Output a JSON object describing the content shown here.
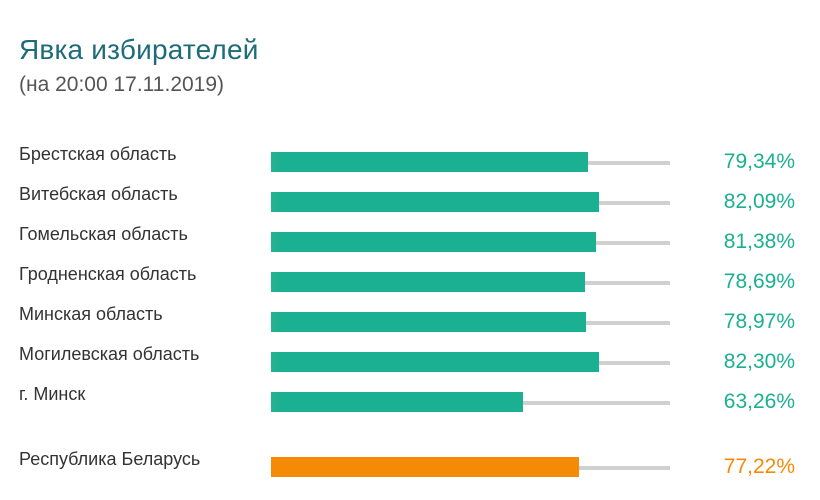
{
  "title": "Явка избирателей",
  "subtitle": "(на 20:00 17.11.2019)",
  "colors": {
    "region": "#1bb091",
    "total": "#f58a07",
    "title": "#1f6b7a",
    "track": "#d0d0d0"
  },
  "chart_data": {
    "type": "bar",
    "orientation": "horizontal",
    "xlim": [
      0,
      100
    ],
    "rows": [
      {
        "label": "Брестская область",
        "value": 79.34,
        "value_label": "79,34%",
        "kind": "region"
      },
      {
        "label": "Витебская область",
        "value": 82.09,
        "value_label": "82,09%",
        "kind": "region"
      },
      {
        "label": "Гомельская область",
        "value": 81.38,
        "value_label": "81,38%",
        "kind": "region"
      },
      {
        "label": "Гродненская область",
        "value": 78.69,
        "value_label": "78,69%",
        "kind": "region"
      },
      {
        "label": "Минская область",
        "value": 78.97,
        "value_label": "78,97%",
        "kind": "region"
      },
      {
        "label": "Могилевская область",
        "value": 82.3,
        "value_label": "82,30%",
        "kind": "region"
      },
      {
        "label": "г. Минск",
        "value": 63.26,
        "value_label": "63,26%",
        "kind": "region"
      },
      {
        "label": "Республика Беларусь",
        "value": 77.22,
        "value_label": "77,22%",
        "kind": "total"
      }
    ]
  }
}
